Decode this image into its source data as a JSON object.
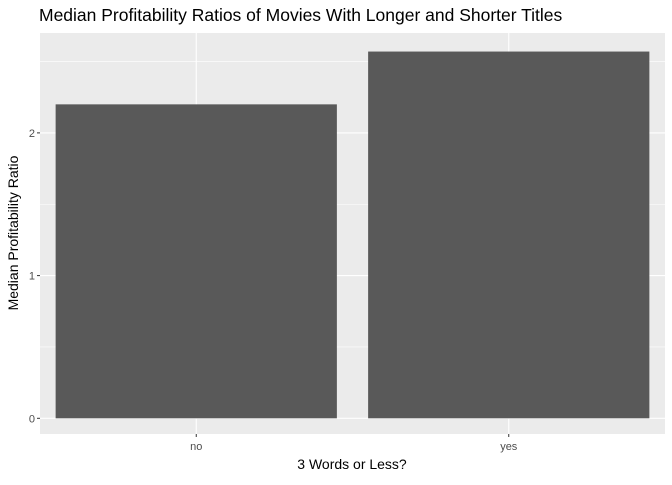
{
  "chart_data": {
    "type": "bar",
    "title": "Median Profitability Ratios of Movies With Longer and Shorter Titles",
    "xlabel": "3 Words or Less?",
    "ylabel": "Median Profitability Ratio",
    "categories": [
      "no",
      "yes"
    ],
    "values": [
      2.2,
      2.57
    ],
    "ylim": [
      -0.11,
      2.7
    ],
    "yticks": [
      0,
      1,
      2
    ],
    "ytick_labels": [
      "0",
      "1",
      "2"
    ],
    "grid": true,
    "legend": "none",
    "colors": {
      "panel_background": "#ebebeb",
      "grid_major": "#ffffff",
      "bar_fill": "#595959",
      "tick_color": "#333333"
    }
  }
}
